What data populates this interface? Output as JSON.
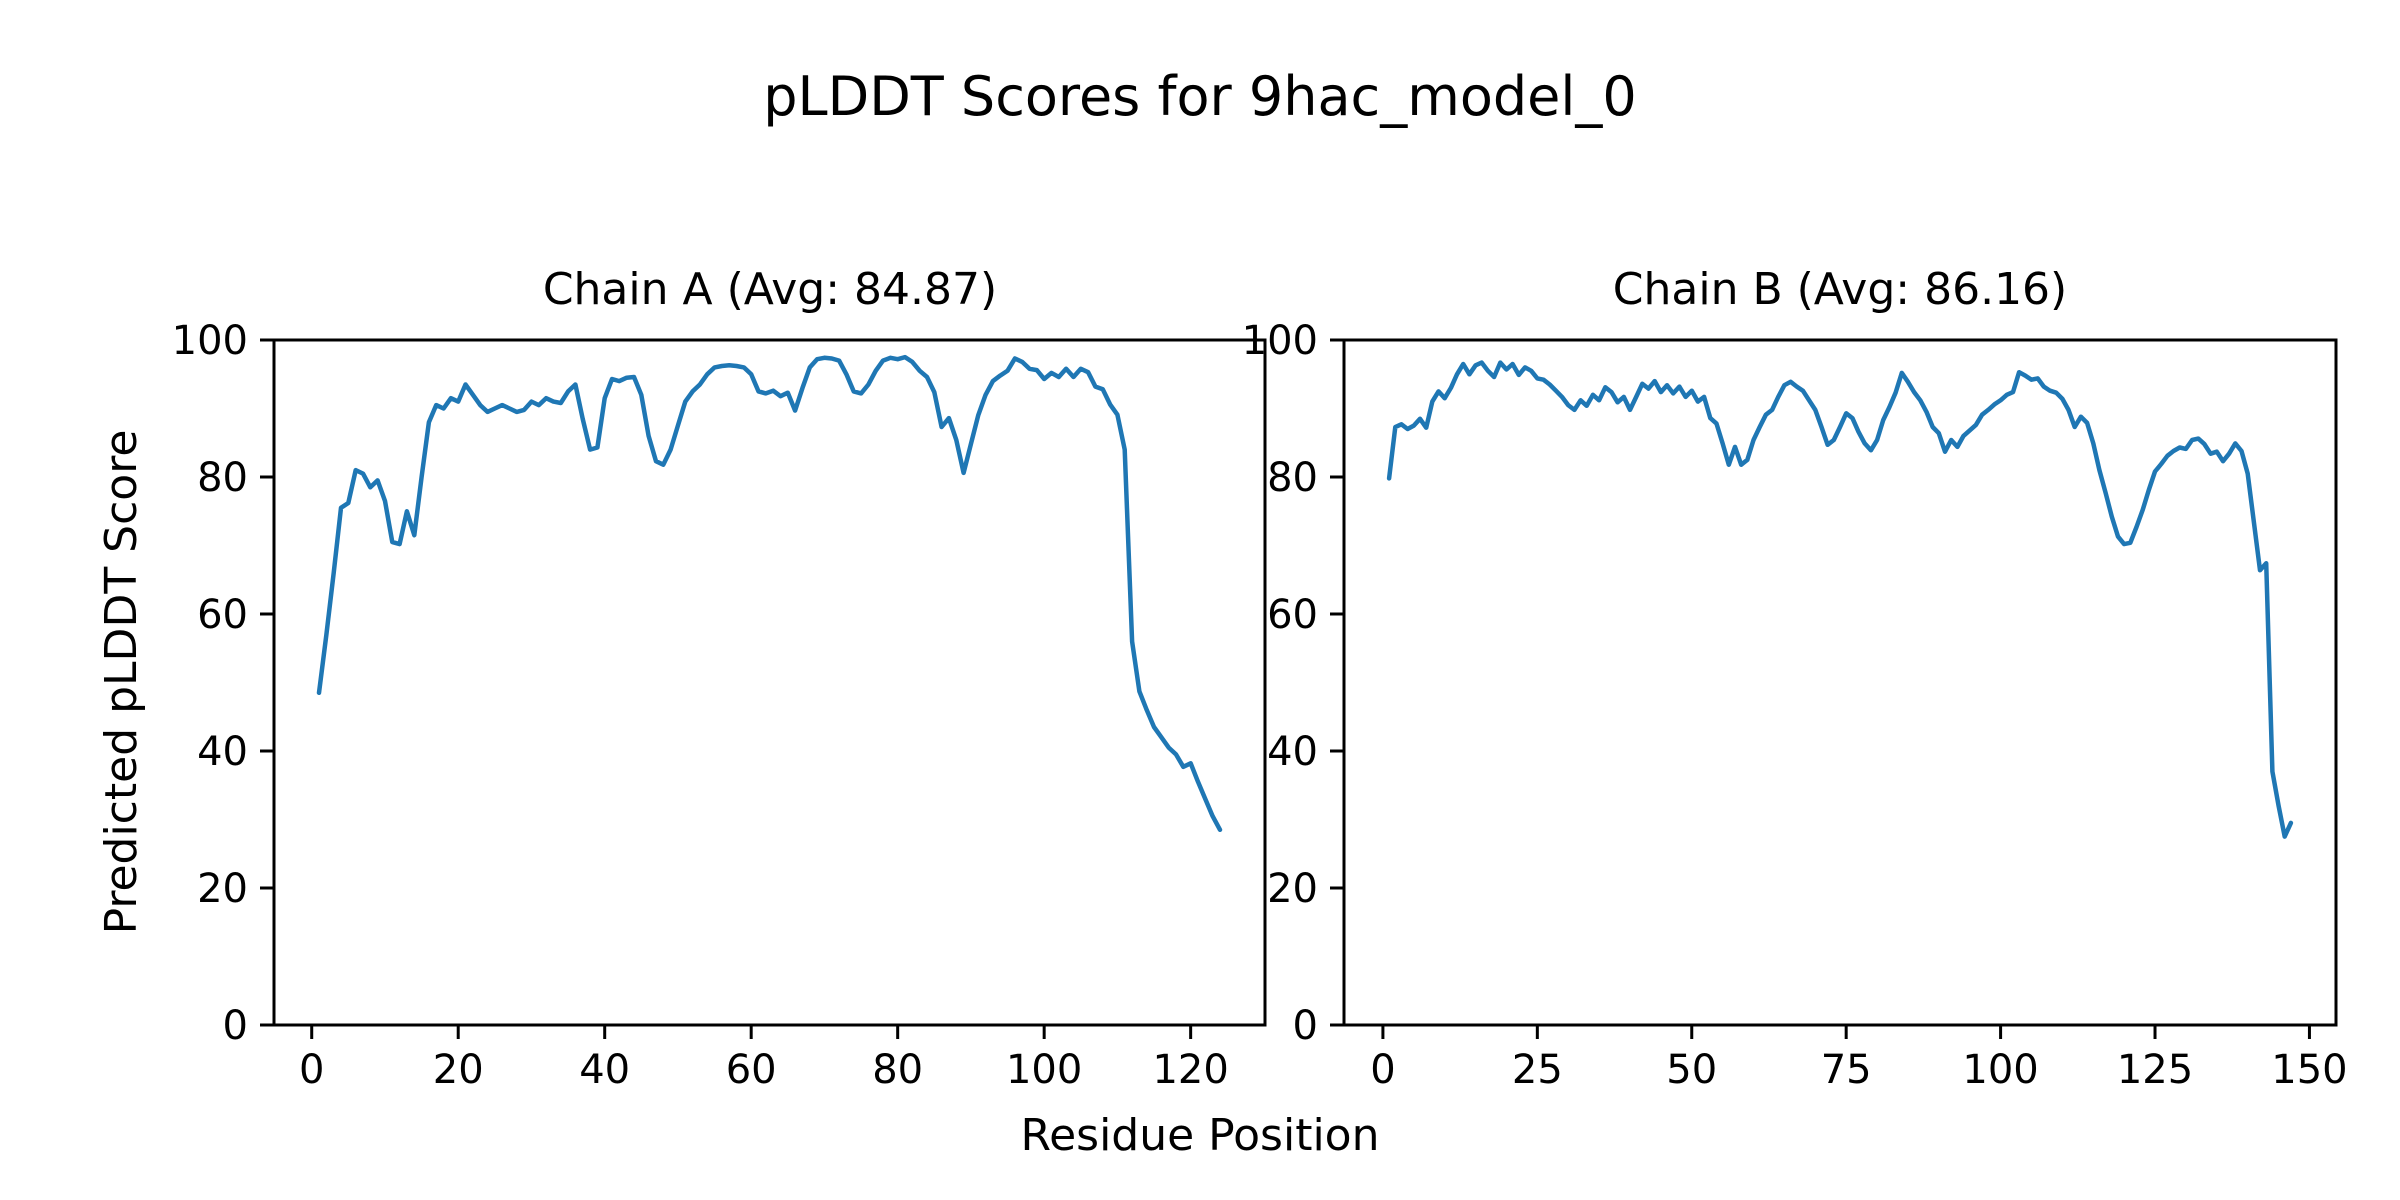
{
  "figure": {
    "title": "pLDDT Scores for 9hac_model_0",
    "xlabel": "Residue Position",
    "ylabel": "Predicted pLDDT Score",
    "background": "#ffffff",
    "text_color": "#000000",
    "axis_color": "#000000"
  },
  "chart_data": [
    {
      "type": "line",
      "title": "Chain A (Avg: 84.87)",
      "average_plddt": 84.87,
      "line_color": "#1f77b4",
      "xlabel": "Residue Position",
      "ylabel": "Predicted pLDDT Score",
      "grid": false,
      "legend_position": "none",
      "x_start": 1,
      "x_margin_frac": 0.05,
      "ylim": [
        0,
        100
      ],
      "xticks": [
        0,
        20,
        40,
        60,
        80,
        100,
        120
      ],
      "yticks": [
        0,
        20,
        40,
        60,
        80,
        100
      ],
      "values": [
        48.5,
        57,
        66,
        75.5,
        76.2,
        81,
        80.5,
        78.5,
        79.5,
        76.5,
        70.5,
        70.2,
        75,
        71.5,
        80,
        88,
        90.5,
        90,
        91.5,
        91,
        93.5,
        92,
        90.5,
        89.5,
        90,
        90.5,
        90,
        89.5,
        89.8,
        91,
        90.5,
        91.5,
        91,
        90.8,
        92.5,
        93.5,
        88.5,
        84,
        84.3,
        91.5,
        94.3,
        94,
        94.5,
        94.6,
        92,
        86,
        82.3,
        81.8,
        84,
        87.5,
        91,
        92.5,
        93.5,
        95,
        96,
        96.2,
        96.3,
        96.2,
        96,
        95,
        92.5,
        92.2,
        92.6,
        91.8,
        92.3,
        89.7,
        93,
        96,
        97.2,
        97.4,
        97.3,
        97,
        95,
        92.5,
        92.2,
        93.5,
        95.5,
        97,
        97.4,
        97.2,
        97.5,
        96.8,
        95.5,
        94.6,
        92.4,
        87.3,
        88.6,
        85.4,
        80.6,
        84.8,
        89,
        92,
        94,
        94.8,
        95.5,
        97.3,
        96.8,
        95.8,
        95.6,
        94.3,
        95.2,
        94.6,
        95.8,
        94.6,
        95.8,
        95.3,
        93.2,
        92.8,
        90.6,
        89.1,
        84,
        56,
        48.7,
        46,
        43.5,
        42,
        40.5,
        39.5,
        37.7,
        38.2,
        35.5,
        33,
        30.5,
        28.5
      ]
    },
    {
      "type": "line",
      "title": "Chain B (Avg: 86.16)",
      "average_plddt": 86.16,
      "line_color": "#1f77b4",
      "xlabel": "Residue Position",
      "ylabel": "Predicted pLDDT Score",
      "grid": false,
      "legend_position": "none",
      "x_start": 1,
      "x_margin_frac": 0.05,
      "ylim": [
        0,
        100
      ],
      "xticks": [
        0,
        25,
        50,
        75,
        100,
        125,
        150
      ],
      "yticks": [
        0,
        20,
        40,
        60,
        80,
        100
      ],
      "values": [
        79.8,
        87.3,
        87.7,
        87.0,
        87.5,
        88.5,
        87.2,
        91.0,
        92.5,
        91.5,
        93.0,
        95.0,
        96.5,
        95.0,
        96.3,
        96.7,
        95.5,
        94.6,
        96.7,
        95.7,
        96.5,
        94.9,
        96.0,
        95.5,
        94.4,
        94.2,
        93.5,
        92.6,
        91.7,
        90.5,
        89.8,
        91.2,
        90.4,
        92.0,
        91.2,
        93.1,
        92.4,
        90.9,
        91.7,
        89.8,
        91.7,
        93.6,
        92.9,
        94.0,
        92.4,
        93.4,
        92.2,
        93.2,
        91.7,
        92.6,
        91.0,
        91.7,
        88.6,
        87.8,
        84.9,
        81.8,
        84.4,
        81.8,
        82.5,
        85.4,
        87.3,
        89.1,
        89.8,
        91.7,
        93.4,
        93.9,
        93.2,
        92.6,
        91.2,
        89.8,
        87.3,
        84.7,
        85.4,
        87.3,
        89.3,
        88.6,
        86.6,
        84.9,
        83.9,
        85.4,
        88.3,
        90.2,
        92.3,
        95.2,
        93.9,
        92.4,
        91.2,
        89.5,
        87.3,
        86.4,
        83.7,
        85.4,
        84.4,
        86.0,
        86.8,
        87.6,
        89.1,
        89.8,
        90.6,
        91.2,
        92.0,
        92.4,
        95.3,
        94.8,
        94.2,
        94.4,
        93.2,
        92.6,
        92.3,
        91.4,
        89.8,
        87.3,
        88.8,
        87.9,
        84.9,
        81.0,
        77.7,
        74.2,
        71.3,
        70.2,
        70.4,
        72.7,
        75.2,
        78.1,
        80.8,
        81.9,
        83.1,
        83.8,
        84.3,
        84.1,
        85.4,
        85.6,
        84.8,
        83.4,
        83.7,
        82.3,
        83.4,
        84.9,
        83.8,
        80.5,
        73.5,
        66.4,
        67.4,
        37.0,
        32.0,
        27.5,
        29.5
      ]
    }
  ]
}
